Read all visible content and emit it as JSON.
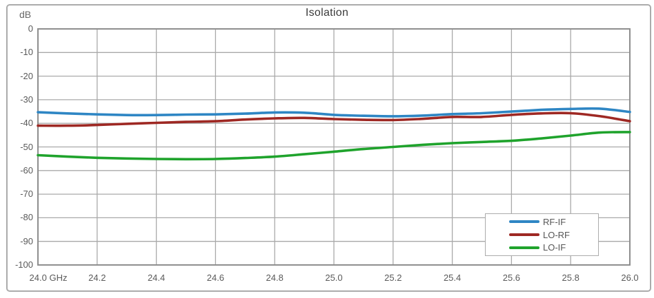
{
  "panel": {
    "border_color": "#ABABAB"
  },
  "colors": {
    "grid": "#A9A9A9",
    "frame": "#8E8E8E",
    "tick_text": "#595959",
    "title_text": "#3A3A3A",
    "background": "#FFFFFF"
  },
  "chart_data": {
    "type": "line",
    "title": "Isolation",
    "ylabel": "dB",
    "x_unit": "GHz",
    "xlim": [
      24.0,
      26.0
    ],
    "ylim": [
      -100,
      0
    ],
    "grid": true,
    "x_major_step": 0.2,
    "y_major_step": 10,
    "legend_position": "bottom-right",
    "xticks": {
      "labels": [
        "24.0 GHz",
        "24.2",
        "24.4",
        "24.6",
        "24.8",
        "25.0",
        "25.2",
        "25.4",
        "25.6",
        "25.8",
        "26.0"
      ],
      "values": [
        24.0,
        24.2,
        24.4,
        24.6,
        24.8,
        25.0,
        25.2,
        25.4,
        25.6,
        25.8,
        26.0
      ]
    },
    "yticks": {
      "labels": [
        "0",
        "-10",
        "-20",
        "-30",
        "-40",
        "-50",
        "-60",
        "-70",
        "-80",
        "-90",
        "-100"
      ],
      "values": [
        0,
        -10,
        -20,
        -30,
        -40,
        -50,
        -60,
        -70,
        -80,
        -90,
        -100
      ]
    },
    "x": [
      24.0,
      24.1,
      24.2,
      24.3,
      24.4,
      24.5,
      24.6,
      24.7,
      24.8,
      24.9,
      25.0,
      25.1,
      25.2,
      25.3,
      25.4,
      25.5,
      25.6,
      25.7,
      25.8,
      25.9,
      26.0
    ],
    "series": [
      {
        "name": "RF-IF",
        "color": "#2E86C4",
        "values": [
          -35.3,
          -35.8,
          -36.2,
          -36.5,
          -36.5,
          -36.3,
          -36.2,
          -35.9,
          -35.4,
          -35.5,
          -36.4,
          -36.8,
          -37.0,
          -36.7,
          -36.1,
          -35.7,
          -35.0,
          -34.3,
          -33.9,
          -33.8,
          -35.2
        ]
      },
      {
        "name": "LO-RF",
        "color": "#9E2823",
        "values": [
          -41.0,
          -41.0,
          -40.7,
          -40.2,
          -39.8,
          -39.4,
          -39.1,
          -38.4,
          -37.9,
          -37.7,
          -38.2,
          -38.5,
          -38.6,
          -38.1,
          -37.3,
          -37.3,
          -36.4,
          -35.8,
          -35.7,
          -37.0,
          -39.1
        ]
      },
      {
        "name": "LO-IF",
        "color": "#1FA32C",
        "values": [
          -53.5,
          -54.1,
          -54.6,
          -54.9,
          -55.1,
          -55.2,
          -55.1,
          -54.7,
          -54.1,
          -53.1,
          -52.0,
          -50.9,
          -50.0,
          -49.1,
          -48.4,
          -47.9,
          -47.4,
          -46.4,
          -45.2,
          -43.9,
          -43.7
        ]
      }
    ]
  }
}
